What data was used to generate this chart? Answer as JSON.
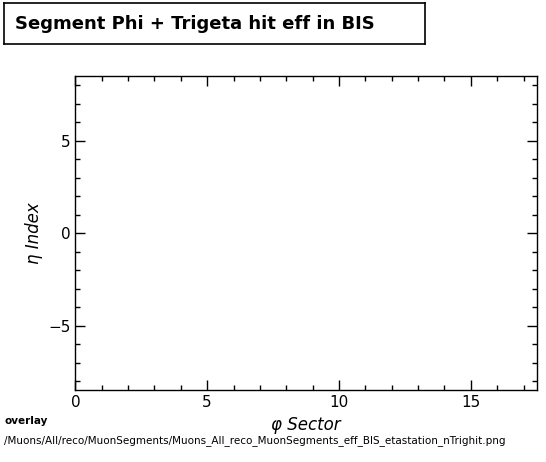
{
  "title": "Segment Phi + Trigeta hit eff in BIS",
  "xlabel": "φ Sector",
  "ylabel": "η Index",
  "xlim": [
    0,
    17.5
  ],
  "ylim": [
    -8.5,
    8.5
  ],
  "xticks": [
    0,
    5,
    10,
    15
  ],
  "yticks": [
    -5,
    0,
    5
  ],
  "footer_line1": "overlay",
  "footer_line2": "/Muons/All/reco/MuonSegments/Muons_All_reco_MuonSegments_eff_BIS_etastation_nTrighit.png",
  "bg_color": "#ffffff",
  "title_fontsize": 13,
  "label_fontsize": 12,
  "tick_fontsize": 11,
  "footer_fontsize": 7.5
}
